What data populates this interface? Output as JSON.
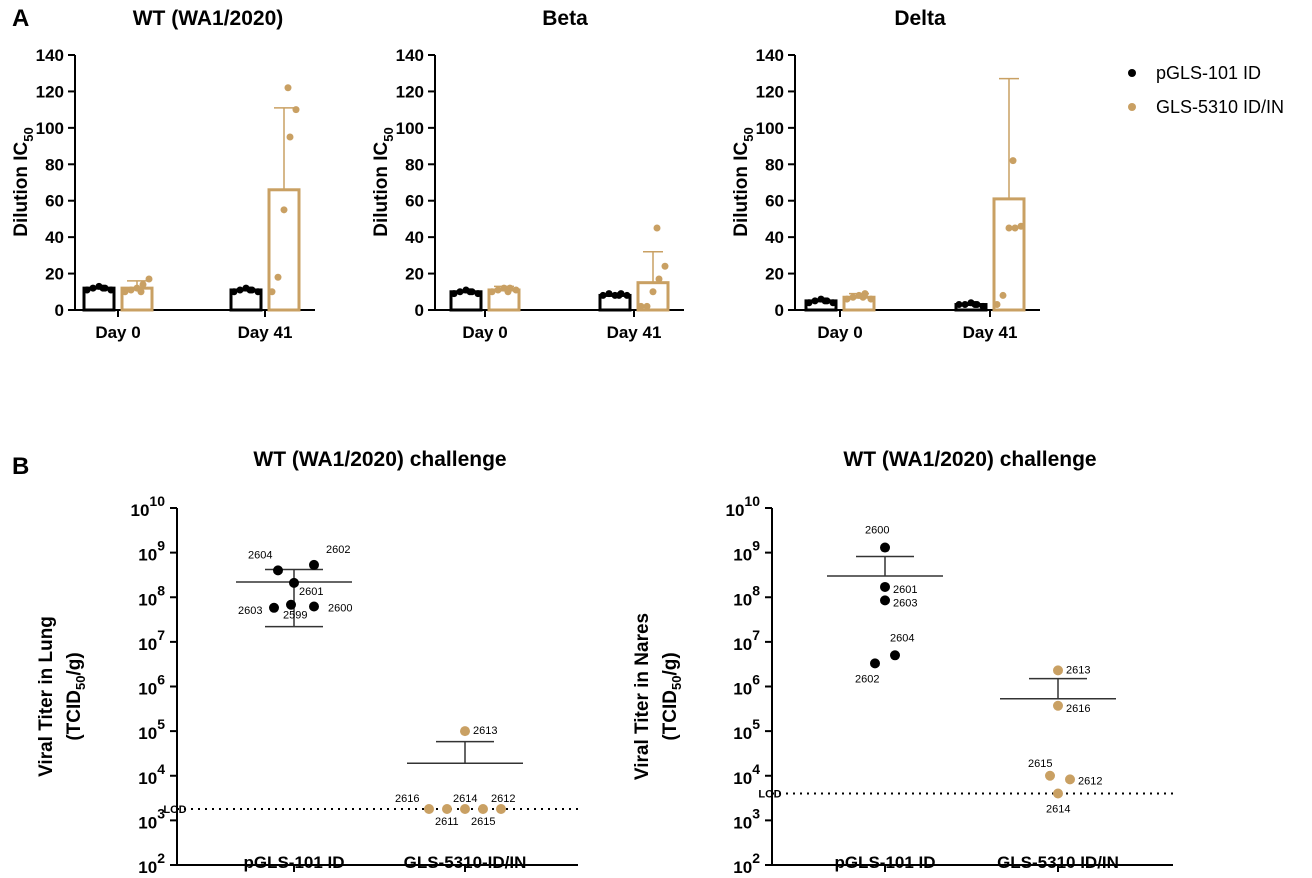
{
  "colors": {
    "black": "#000000",
    "gold": "#C9A063"
  },
  "panels": {
    "a": "A",
    "b": "B"
  },
  "legend": {
    "items": [
      "pGLS-101 ID",
      "GLS-5310 ID/IN"
    ]
  },
  "lod_label": "LOD",
  "chart_data": [
    {
      "type": "bar",
      "title": "WT (WA1/2020)",
      "ylabel": "Dilution IC50",
      "ylim": [
        0,
        140
      ],
      "yticks": [
        0,
        20,
        40,
        60,
        80,
        100,
        120,
        140
      ],
      "categories": [
        "Day 0",
        "Day 41"
      ],
      "series": [
        {
          "name": "pGLS-101 ID",
          "values": [
            12,
            11
          ],
          "errors": [
            null,
            null
          ],
          "points": [
            [
              11,
              12,
              13,
              12,
              11,
              12
            ],
            [
              10,
              11,
              12,
              11,
              10,
              11
            ]
          ]
        },
        {
          "name": "GLS-5310 ID/IN",
          "values": [
            12,
            66
          ],
          "errors": [
            4,
            45
          ],
          "points": [
            [
              10,
              11,
              12,
              14,
              17,
              10
            ],
            [
              10,
              18,
              55,
              95,
              110,
              122
            ]
          ]
        }
      ]
    },
    {
      "type": "bar",
      "title": "Beta",
      "ylabel": "Dilution IC50",
      "ylim": [
        0,
        140
      ],
      "yticks": [
        0,
        20,
        40,
        60,
        80,
        100,
        120,
        140
      ],
      "categories": [
        "Day 0",
        "Day 41"
      ],
      "series": [
        {
          "name": "pGLS-101 ID",
          "values": [
            10,
            8
          ],
          "errors": [
            null,
            null
          ],
          "points": [
            [
              9,
              10,
              11,
              10,
              9,
              10
            ],
            [
              8,
              9,
              8,
              9,
              8,
              8
            ]
          ]
        },
        {
          "name": "GLS-5310 ID/IN",
          "values": [
            11,
            15
          ],
          "errors": [
            2,
            17
          ],
          "points": [
            [
              10,
              11,
              12,
              12,
              11,
              10
            ],
            [
              2,
              2,
              10,
              17,
              24,
              45
            ]
          ]
        }
      ]
    },
    {
      "type": "bar",
      "title": "Delta",
      "ylabel": "Dilution IC50",
      "ylim": [
        0,
        140
      ],
      "yticks": [
        0,
        20,
        40,
        60,
        80,
        100,
        120,
        140
      ],
      "categories": [
        "Day 0",
        "Day 41"
      ],
      "series": [
        {
          "name": "pGLS-101 ID",
          "values": [
            5,
            3
          ],
          "errors": [
            null,
            null
          ],
          "points": [
            [
              4,
              5,
              6,
              5,
              4,
              5
            ],
            [
              3,
              3,
              4,
              3,
              2,
              3
            ]
          ]
        },
        {
          "name": "GLS-5310 ID/IN",
          "values": [
            7,
            61
          ],
          "errors": [
            2,
            66
          ],
          "points": [
            [
              6,
              7,
              8,
              9,
              6,
              7
            ],
            [
              3,
              8,
              45,
              45,
              46,
              82
            ]
          ]
        }
      ]
    },
    {
      "type": "scatter",
      "title": "WT (WA1/2020) challenge",
      "ylabel": "Viral Titer in Lung",
      "ylabel_unit": "(TCID50/g)",
      "yscale": "log",
      "ylim": [
        100,
        10000000000
      ],
      "ytick_exponents": [
        2,
        3,
        4,
        5,
        6,
        7,
        8,
        9,
        10
      ],
      "categories": [
        "pGLS-101 ID",
        "GLS-5310-ID/IN"
      ],
      "lod": 1800,
      "groups": [
        {
          "name": "pGLS-101 ID",
          "mean": 220000000,
          "error_low": 22000000,
          "error_high": 420000000,
          "points": [
            {
              "id": "2604",
              "value": 400000000
            },
            {
              "id": "2602",
              "value": 530000000
            },
            {
              "id": "2601",
              "value": 210000000
            },
            {
              "id": "2603",
              "value": 58000000
            },
            {
              "id": "2599",
              "value": 68000000
            },
            {
              "id": "2600",
              "value": 62000000
            }
          ]
        },
        {
          "name": "GLS-5310-ID/IN",
          "mean": 19000,
          "error_low": null,
          "error_high": 58000,
          "points": [
            {
              "id": "2613",
              "value": 100000
            },
            {
              "id": "2616",
              "value": 1800
            },
            {
              "id": "2611",
              "value": 1800
            },
            {
              "id": "2614",
              "value": 1800
            },
            {
              "id": "2615",
              "value": 1800
            },
            {
              "id": "2612",
              "value": 1800
            }
          ]
        }
      ]
    },
    {
      "type": "scatter",
      "title": "WT (WA1/2020) challenge",
      "ylabel": "Viral Titer in Nares",
      "ylabel_unit": "(TCID50/g)",
      "yscale": "log",
      "ylim": [
        100,
        10000000000
      ],
      "ytick_exponents": [
        2,
        3,
        4,
        5,
        6,
        7,
        8,
        9,
        10
      ],
      "categories": [
        "pGLS-101 ID",
        "GLS-5310 ID/IN"
      ],
      "lod": 4000,
      "groups": [
        {
          "name": "pGLS-101 ID",
          "mean": 300000000,
          "error_low": null,
          "error_high": 820000000,
          "points": [
            {
              "id": "2600",
              "value": 1300000000
            },
            {
              "id": "2601",
              "value": 170000000
            },
            {
              "id": "2603",
              "value": 85000000
            },
            {
              "id": "2604",
              "value": 5000000
            },
            {
              "id": "2602",
              "value": 3300000
            }
          ]
        },
        {
          "name": "GLS-5310 ID/IN",
          "mean": 530000,
          "error_low": null,
          "error_high": 1500000,
          "points": [
            {
              "id": "2613",
              "value": 2300000
            },
            {
              "id": "2616",
              "value": 370000
            },
            {
              "id": "2615",
              "value": 10000
            },
            {
              "id": "2612",
              "value": 8300
            },
            {
              "id": "2614",
              "value": 4000
            }
          ]
        }
      ]
    }
  ]
}
